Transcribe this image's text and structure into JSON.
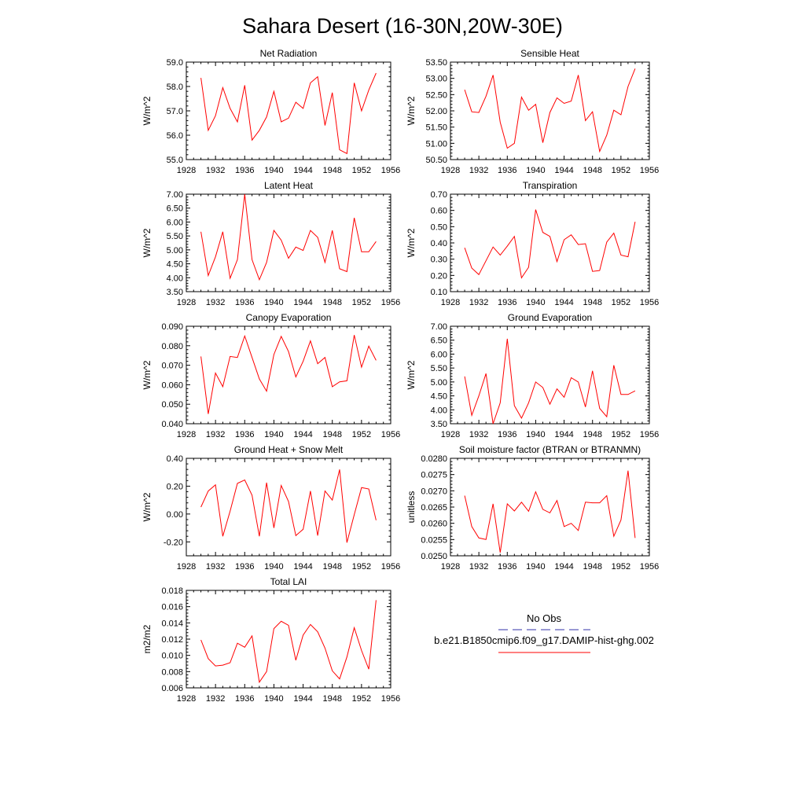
{
  "title": "Sahara Desert (16-30N,20W-30E)",
  "legend": {
    "obs_label": "No Obs",
    "case_label": "b.e21.B1850cmip6.f09_g17.DAMIP-hist-ghg.002",
    "obs_color": "#3333aa",
    "case_color": "#ff0000"
  },
  "chart_data": [
    {
      "type": "line",
      "title": "Net Radiation",
      "ylabel": "W/m^2",
      "xlim": [
        1928,
        1956
      ],
      "ylim": [
        55.0,
        59.0
      ],
      "xticks": [
        1928,
        1932,
        1936,
        1940,
        1944,
        1948,
        1952,
        1956
      ],
      "yticks": [
        "55.0",
        "56.0",
        "57.0",
        "58.0",
        "59.0"
      ],
      "x": [
        1930,
        1931,
        1932,
        1933,
        1934,
        1935,
        1936,
        1937,
        1938,
        1939,
        1940,
        1941,
        1942,
        1943,
        1944,
        1945,
        1946,
        1947,
        1948,
        1949,
        1950,
        1951,
        1952,
        1953,
        1954
      ],
      "series": [
        {
          "values": [
            58.35,
            56.2,
            56.8,
            57.95,
            57.1,
            56.55,
            58.05,
            55.8,
            56.2,
            56.75,
            57.8,
            56.55,
            56.7,
            57.35,
            57.1,
            58.15,
            58.4,
            56.4,
            57.75,
            55.4,
            55.25,
            58.15,
            57.0,
            57.85,
            58.55
          ]
        }
      ]
    },
    {
      "type": "line",
      "title": "Sensible Heat",
      "ylabel": "W/m^2",
      "xlim": [
        1928,
        1956
      ],
      "ylim": [
        50.5,
        53.5
      ],
      "xticks": [
        1928,
        1932,
        1936,
        1940,
        1944,
        1948,
        1952,
        1956
      ],
      "yticks": [
        "50.50",
        "51.00",
        "51.50",
        "52.00",
        "52.50",
        "53.00",
        "53.50"
      ],
      "x": [
        1930,
        1931,
        1932,
        1933,
        1934,
        1935,
        1936,
        1937,
        1938,
        1939,
        1940,
        1941,
        1942,
        1943,
        1944,
        1945,
        1946,
        1947,
        1948,
        1949,
        1950,
        1951,
        1952,
        1953,
        1954
      ],
      "series": [
        {
          "values": [
            52.65,
            51.97,
            51.95,
            52.45,
            53.1,
            51.65,
            50.85,
            51.0,
            52.42,
            52.02,
            52.2,
            51.02,
            51.95,
            52.4,
            52.23,
            52.3,
            53.1,
            51.7,
            51.97,
            50.75,
            51.25,
            52.02,
            51.88,
            52.75,
            53.3
          ]
        }
      ]
    },
    {
      "type": "line",
      "title": "Latent Heat",
      "ylabel": "W/m^2",
      "xlim": [
        1928,
        1956
      ],
      "ylim": [
        3.5,
        7.0
      ],
      "xticks": [
        1928,
        1932,
        1936,
        1940,
        1944,
        1948,
        1952,
        1956
      ],
      "yticks": [
        "3.50",
        "4.00",
        "4.50",
        "5.00",
        "5.50",
        "6.00",
        "6.50",
        "7.00"
      ],
      "x": [
        1930,
        1931,
        1932,
        1933,
        1934,
        1935,
        1936,
        1937,
        1938,
        1939,
        1940,
        1941,
        1942,
        1943,
        1944,
        1945,
        1946,
        1947,
        1948,
        1949,
        1950,
        1951,
        1952,
        1953,
        1954
      ],
      "series": [
        {
          "values": [
            5.65,
            4.08,
            4.75,
            5.65,
            3.98,
            4.65,
            7.0,
            4.65,
            3.93,
            4.55,
            5.7,
            5.35,
            4.7,
            5.1,
            4.98,
            5.7,
            5.45,
            4.55,
            5.7,
            4.32,
            4.22,
            6.15,
            4.93,
            4.93,
            5.3
          ]
        }
      ]
    },
    {
      "type": "line",
      "title": "Transpiration",
      "ylabel": "W/m^2",
      "xlim": [
        1928,
        1956
      ],
      "ylim": [
        0.1,
        0.7
      ],
      "xticks": [
        1928,
        1932,
        1936,
        1940,
        1944,
        1948,
        1952,
        1956
      ],
      "yticks": [
        "0.10",
        "0.20",
        "0.30",
        "0.40",
        "0.50",
        "0.60",
        "0.70"
      ],
      "x": [
        1930,
        1931,
        1932,
        1933,
        1934,
        1935,
        1936,
        1937,
        1938,
        1939,
        1940,
        1941,
        1942,
        1943,
        1944,
        1945,
        1946,
        1947,
        1948,
        1949,
        1950,
        1951,
        1952,
        1953,
        1954
      ],
      "series": [
        {
          "values": [
            0.37,
            0.245,
            0.205,
            0.29,
            0.375,
            0.325,
            0.38,
            0.44,
            0.185,
            0.25,
            0.605,
            0.465,
            0.44,
            0.285,
            0.42,
            0.45,
            0.39,
            0.395,
            0.225,
            0.23,
            0.405,
            0.46,
            0.325,
            0.315,
            0.53
          ]
        }
      ]
    },
    {
      "type": "line",
      "title": "Canopy Evaporation",
      "ylabel": "W/m^2",
      "xlim": [
        1928,
        1956
      ],
      "ylim": [
        0.04,
        0.09
      ],
      "xticks": [
        1928,
        1932,
        1936,
        1940,
        1944,
        1948,
        1952,
        1956
      ],
      "yticks": [
        "0.040",
        "0.050",
        "0.060",
        "0.070",
        "0.080",
        "0.090"
      ],
      "x": [
        1930,
        1931,
        1932,
        1933,
        1934,
        1935,
        1936,
        1937,
        1938,
        1939,
        1940,
        1941,
        1942,
        1943,
        1944,
        1945,
        1946,
        1947,
        1948,
        1949,
        1950,
        1951,
        1952,
        1953,
        1954
      ],
      "series": [
        {
          "values": [
            0.0745,
            0.045,
            0.066,
            0.059,
            0.0745,
            0.074,
            0.085,
            0.074,
            0.063,
            0.0567,
            0.0755,
            0.0848,
            0.077,
            0.064,
            0.072,
            0.0825,
            0.0708,
            0.074,
            0.059,
            0.0615,
            0.062,
            0.0855,
            0.069,
            0.0798,
            0.0725
          ]
        }
      ]
    },
    {
      "type": "line",
      "title": "Ground Evaporation",
      "ylabel": "W/m^2",
      "xlim": [
        1928,
        1956
      ],
      "ylim": [
        3.5,
        7.0
      ],
      "xticks": [
        1928,
        1932,
        1936,
        1940,
        1944,
        1948,
        1952,
        1956
      ],
      "yticks": [
        "3.50",
        "4.00",
        "4.50",
        "5.00",
        "5.50",
        "6.00",
        "6.50",
        "7.00"
      ],
      "x": [
        1930,
        1931,
        1932,
        1933,
        1934,
        1935,
        1936,
        1937,
        1938,
        1939,
        1940,
        1941,
        1942,
        1943,
        1944,
        1945,
        1946,
        1947,
        1948,
        1949,
        1950,
        1951,
        1952,
        1953,
        1954
      ],
      "series": [
        {
          "values": [
            5.2,
            3.8,
            4.5,
            5.3,
            3.5,
            4.25,
            6.55,
            4.15,
            3.7,
            4.25,
            5.0,
            4.8,
            4.2,
            4.75,
            4.45,
            5.15,
            5.0,
            4.1,
            5.4,
            4.05,
            3.75,
            5.6,
            4.55,
            4.55,
            4.68
          ]
        }
      ]
    },
    {
      "type": "line",
      "title": "Ground Heat + Snow Melt",
      "ylabel": "W/m^2",
      "xlim": [
        1928,
        1956
      ],
      "ylim": [
        -0.3,
        0.4
      ],
      "xticks": [
        1928,
        1932,
        1936,
        1940,
        1944,
        1948,
        1952,
        1956
      ],
      "yticks": [
        "-0.20",
        "0.00",
        "0.20",
        "0.40"
      ],
      "ytick_values": [
        -0.2,
        0.0,
        0.2,
        0.4
      ],
      "x": [
        1930,
        1931,
        1932,
        1933,
        1934,
        1935,
        1936,
        1937,
        1938,
        1939,
        1940,
        1941,
        1942,
        1943,
        1944,
        1945,
        1946,
        1947,
        1948,
        1949,
        1950,
        1951,
        1952,
        1953,
        1954
      ],
      "series": [
        {
          "values": [
            0.05,
            0.165,
            0.21,
            -0.16,
            0.02,
            0.22,
            0.245,
            0.135,
            -0.16,
            0.225,
            -0.1,
            0.205,
            0.09,
            -0.155,
            -0.11,
            0.165,
            -0.155,
            0.165,
            0.1,
            0.32,
            -0.205,
            -0.005,
            0.19,
            0.18,
            -0.045
          ]
        }
      ]
    },
    {
      "type": "line",
      "title": "Soil moisture factor (BTRAN or BTRANMN)",
      "ylabel": "unitless",
      "xlim": [
        1928,
        1956
      ],
      "ylim": [
        0.025,
        0.028
      ],
      "xticks": [
        1928,
        1932,
        1936,
        1940,
        1944,
        1948,
        1952,
        1956
      ],
      "yticks": [
        "0.0250",
        "0.0255",
        "0.0260",
        "0.0265",
        "0.0270",
        "0.0275",
        "0.0280"
      ],
      "x": [
        1930,
        1931,
        1932,
        1933,
        1934,
        1935,
        1936,
        1937,
        1938,
        1939,
        1940,
        1941,
        1942,
        1943,
        1944,
        1945,
        1946,
        1947,
        1948,
        1949,
        1950,
        1951,
        1952,
        1953,
        1954
      ],
      "series": [
        {
          "values": [
            0.02685,
            0.0259,
            0.02555,
            0.0255,
            0.0266,
            0.0251,
            0.0266,
            0.02638,
            0.02665,
            0.02637,
            0.02697,
            0.02643,
            0.02632,
            0.0267,
            0.0259,
            0.026,
            0.02578,
            0.02665,
            0.02663,
            0.02663,
            0.02685,
            0.0256,
            0.0261,
            0.02762,
            0.02555
          ]
        }
      ]
    },
    {
      "type": "line",
      "title": "Total LAI",
      "ylabel": "m2/m2",
      "xlim": [
        1928,
        1956
      ],
      "ylim": [
        0.006,
        0.018
      ],
      "xticks": [
        1928,
        1932,
        1936,
        1940,
        1944,
        1948,
        1952,
        1956
      ],
      "yticks": [
        "0.006",
        "0.008",
        "0.010",
        "0.012",
        "0.014",
        "0.016",
        "0.018"
      ],
      "x": [
        1930,
        1931,
        1932,
        1933,
        1934,
        1935,
        1936,
        1937,
        1938,
        1939,
        1940,
        1941,
        1942,
        1943,
        1944,
        1945,
        1946,
        1947,
        1948,
        1949,
        1950,
        1951,
        1952,
        1953,
        1954
      ],
      "series": [
        {
          "values": [
            0.0119,
            0.0096,
            0.0087,
            0.0088,
            0.0091,
            0.0115,
            0.011,
            0.0124,
            0.0067,
            0.008,
            0.0133,
            0.0142,
            0.0137,
            0.0094,
            0.0125,
            0.0138,
            0.0129,
            0.0109,
            0.0081,
            0.0071,
            0.0098,
            0.0134,
            0.0106,
            0.0083,
            0.0168
          ]
        }
      ]
    }
  ]
}
